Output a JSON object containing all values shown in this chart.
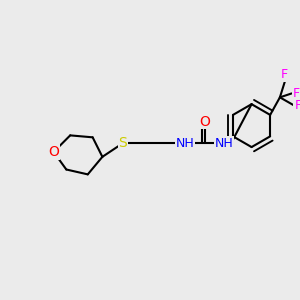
{
  "bg_color": "#ebebeb",
  "bond_color": "#000000",
  "bond_lw": 1.5,
  "atom_colors": {
    "O": "#ff0000",
    "S": "#cccc00",
    "N": "#0000ff",
    "F": "#ff00ff",
    "C": "#000000"
  },
  "font_size": 9,
  "fig_size": [
    3.0,
    3.0
  ],
  "dpi": 100
}
